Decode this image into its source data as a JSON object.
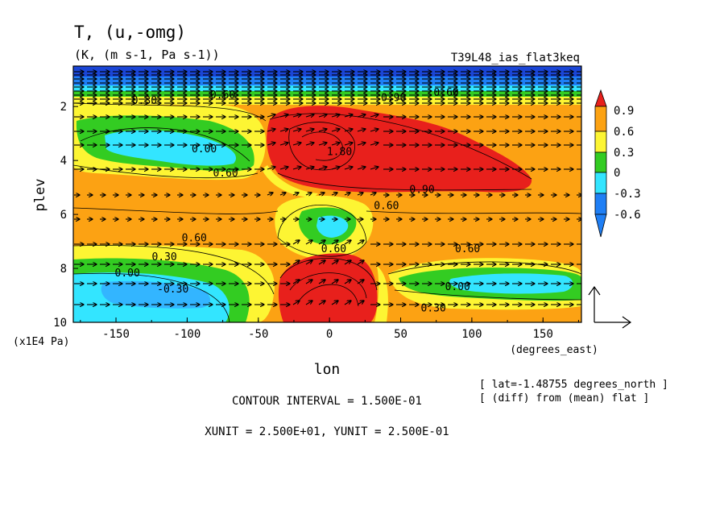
{
  "title": "T, (u,-omg)",
  "units": "(K, (m s-1, Pa s-1))",
  "run_label": "T39L48_ias_flat3keq",
  "colors": {
    "red": "#e8201c",
    "orange": "#fca213",
    "yellow": "#fdf533",
    "green": "#33cc22",
    "cyan": "#33e5ff",
    "blue": "#1f7ff5",
    "deepblue": "#1a45d6"
  },
  "chart_data": {
    "type": "heatmap",
    "xlabel": "lon",
    "xunit_label": "(degrees_east)",
    "ylabel": "plev",
    "yunit_label": "(x1E4 Pa)",
    "xlim": [
      -180,
      177
    ],
    "ylim": [
      10,
      0.5
    ],
    "xticks": [
      {
        "v": -150,
        "t": "-150"
      },
      {
        "v": -100,
        "t": "-100"
      },
      {
        "v": -50,
        "t": "-50"
      },
      {
        "v": 0,
        "t": "0"
      },
      {
        "v": 50,
        "t": "50"
      },
      {
        "v": 100,
        "t": "100"
      },
      {
        "v": 150,
        "t": "150"
      }
    ],
    "yticks": [
      {
        "v": 2,
        "t": "2"
      },
      {
        "v": 4,
        "t": "4"
      },
      {
        "v": 6,
        "t": "6"
      },
      {
        "v": 8,
        "t": "8"
      },
      {
        "v": 10,
        "t": "10"
      }
    ],
    "colorbar": [
      {
        "v": 0.9,
        "t": "0.9"
      },
      {
        "v": 0.6,
        "t": "0.6"
      },
      {
        "v": 0.3,
        "t": "0.3"
      },
      {
        "v": 0,
        "t": "0"
      },
      {
        "v": -0.3,
        "t": "-0.3"
      },
      {
        "v": -0.6,
        "t": "-0.6"
      }
    ],
    "contour_labels": [
      {
        "x": -130,
        "y": 1.9,
        "t": "0.30"
      },
      {
        "x": -75,
        "y": 1.7,
        "t": "0.60"
      },
      {
        "x": -88,
        "y": 3.7,
        "t": "0.00"
      },
      {
        "x": -73,
        "y": 4.6,
        "t": "0.60"
      },
      {
        "x": 7,
        "y": 3.8,
        "t": "1.80"
      },
      {
        "x": 45,
        "y": 1.8,
        "t": "0.90"
      },
      {
        "x": 82,
        "y": 1.6,
        "t": "0.60"
      },
      {
        "x": 65,
        "y": 5.2,
        "t": "0.90"
      },
      {
        "x": 40,
        "y": 5.8,
        "t": "0.60"
      },
      {
        "x": -95,
        "y": 7.0,
        "t": "0.60"
      },
      {
        "x": -116,
        "y": 7.7,
        "t": "0.30"
      },
      {
        "x": -142,
        "y": 8.3,
        "t": "0.00"
      },
      {
        "x": -110,
        "y": 8.9,
        "t": "-0.30"
      },
      {
        "x": 3,
        "y": 7.4,
        "t": "0.60"
      },
      {
        "x": 97,
        "y": 7.4,
        "t": "0.60"
      },
      {
        "x": 90,
        "y": 8.8,
        "t": "0.00"
      },
      {
        "x": 73,
        "y": 9.6,
        "t": "0.30"
      }
    ],
    "reference_vector": {
      "xunit": "2.500E+01",
      "yunit": "2.500E-01"
    }
  },
  "footer": {
    "contour_interval": "CONTOUR INTERVAL = 1.500E-01",
    "units_line": "XUNIT = 2.500E+01, YUNIT = 2.500E-01",
    "lat_note": "[ lat=-1.48755 degrees_north ]",
    "diff_note": "[ (diff) from (mean) flat ]"
  }
}
